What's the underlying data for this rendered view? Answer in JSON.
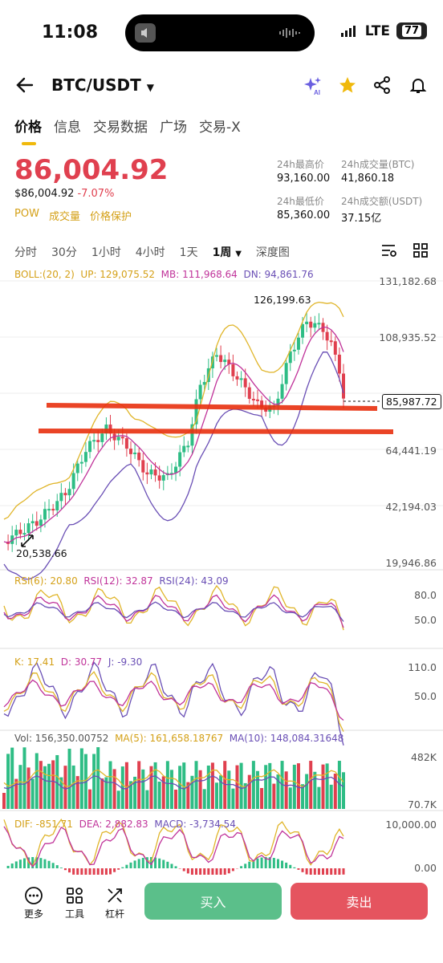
{
  "status": {
    "time": "11:08",
    "network": "LTE",
    "battery": "77"
  },
  "header": {
    "pair": "BTC/USDT"
  },
  "tabs": [
    "价格",
    "信息",
    "交易数据",
    "广场",
    "交易-X"
  ],
  "price": {
    "last": "86,004.92",
    "usd": "$86,004.92",
    "change": "-7.07%",
    "links": [
      "POW",
      "成交量",
      "价格保护"
    ]
  },
  "stats": {
    "high_label": "24h最高价",
    "high": "93,160.00",
    "vol_btc_label": "24h成交量(BTC)",
    "vol_btc": "41,860.18",
    "low_label": "24h最低价",
    "low": "85,360.00",
    "vol_usdt_label": "24h成交额(USDT)",
    "vol_usdt": "37.15亿"
  },
  "periods": [
    "分时",
    "30分",
    "1小时",
    "4小时",
    "1天",
    "1周",
    "深度图"
  ],
  "boll": {
    "label": "BOLL:(20, 2)",
    "up": "UP: 129,075.52",
    "mb": "MB: 111,968.64",
    "dn": "DN: 94,861.76"
  },
  "main_axis": [
    "131,182.68",
    "108,935.52",
    "64,441.19",
    "42,194.03",
    "19,946.86"
  ],
  "annotations": {
    "high": "126,199.63",
    "low": "20,538.66",
    "current": "85,987.72"
  },
  "rsi": {
    "r6": "RSI(6): 20.80",
    "r12": "RSI(12): 32.87",
    "r24": "RSI(24): 43.09",
    "axis": [
      "80.0",
      "50.0"
    ]
  },
  "kdj": {
    "k": "K: 17.41",
    "d": "D: 30.77",
    "j": "J: -9.30",
    "axis": [
      "110.0",
      "50.0"
    ]
  },
  "vol": {
    "vol": "Vol: 156,350.00752",
    "ma5": "MA(5): 161,658.18767",
    "ma10": "MA(10): 148,084.31648",
    "axis": [
      "482K",
      "70.7K"
    ]
  },
  "macd": {
    "dif": "DIF: -851.71",
    "dea": "DEA: 2,882.83",
    "macd": "MACD: -3,734.54",
    "axis": [
      "10,000.00",
      "0.00"
    ]
  },
  "bottom": {
    "more": "更多",
    "tools": "工具",
    "leverage": "杠杆",
    "buy": "买入",
    "sell": "卖出"
  },
  "colors": {
    "up": "#2ebd85",
    "down": "#e0404f",
    "accent": "#f0b90b",
    "boll_up": "#e0b52a",
    "boll_mb": "#c0339a",
    "boll_dn": "#6a4fb5"
  }
}
